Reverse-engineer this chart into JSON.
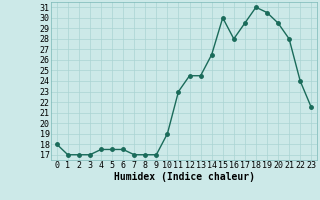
{
  "x": [
    0,
    1,
    2,
    3,
    4,
    5,
    6,
    7,
    8,
    9,
    10,
    11,
    12,
    13,
    14,
    15,
    16,
    17,
    18,
    19,
    20,
    21,
    22,
    23
  ],
  "y": [
    18,
    17,
    17,
    17,
    17.5,
    17.5,
    17.5,
    17,
    17,
    17,
    19,
    23,
    24.5,
    24.5,
    26.5,
    30,
    28,
    29.5,
    31,
    30.5,
    29.5,
    28,
    24,
    21.5
  ],
  "line_color": "#1a6b5a",
  "marker": "o",
  "markersize": 2.5,
  "linewidth": 1.0,
  "bg_color": "#cce9e8",
  "grid_color": "#aad4d3",
  "xlabel": "Humidex (Indice chaleur)",
  "xlim": [
    -0.5,
    23.5
  ],
  "ylim": [
    16.5,
    31.5
  ],
  "yticks": [
    17,
    18,
    19,
    20,
    21,
    22,
    23,
    24,
    25,
    26,
    27,
    28,
    29,
    30,
    31
  ],
  "xticks": [
    0,
    1,
    2,
    3,
    4,
    5,
    6,
    7,
    8,
    9,
    10,
    11,
    12,
    13,
    14,
    15,
    16,
    17,
    18,
    19,
    20,
    21,
    22,
    23
  ],
  "xlabel_fontsize": 7,
  "tick_fontsize": 6,
  "spine_color": "#7ab8b6"
}
